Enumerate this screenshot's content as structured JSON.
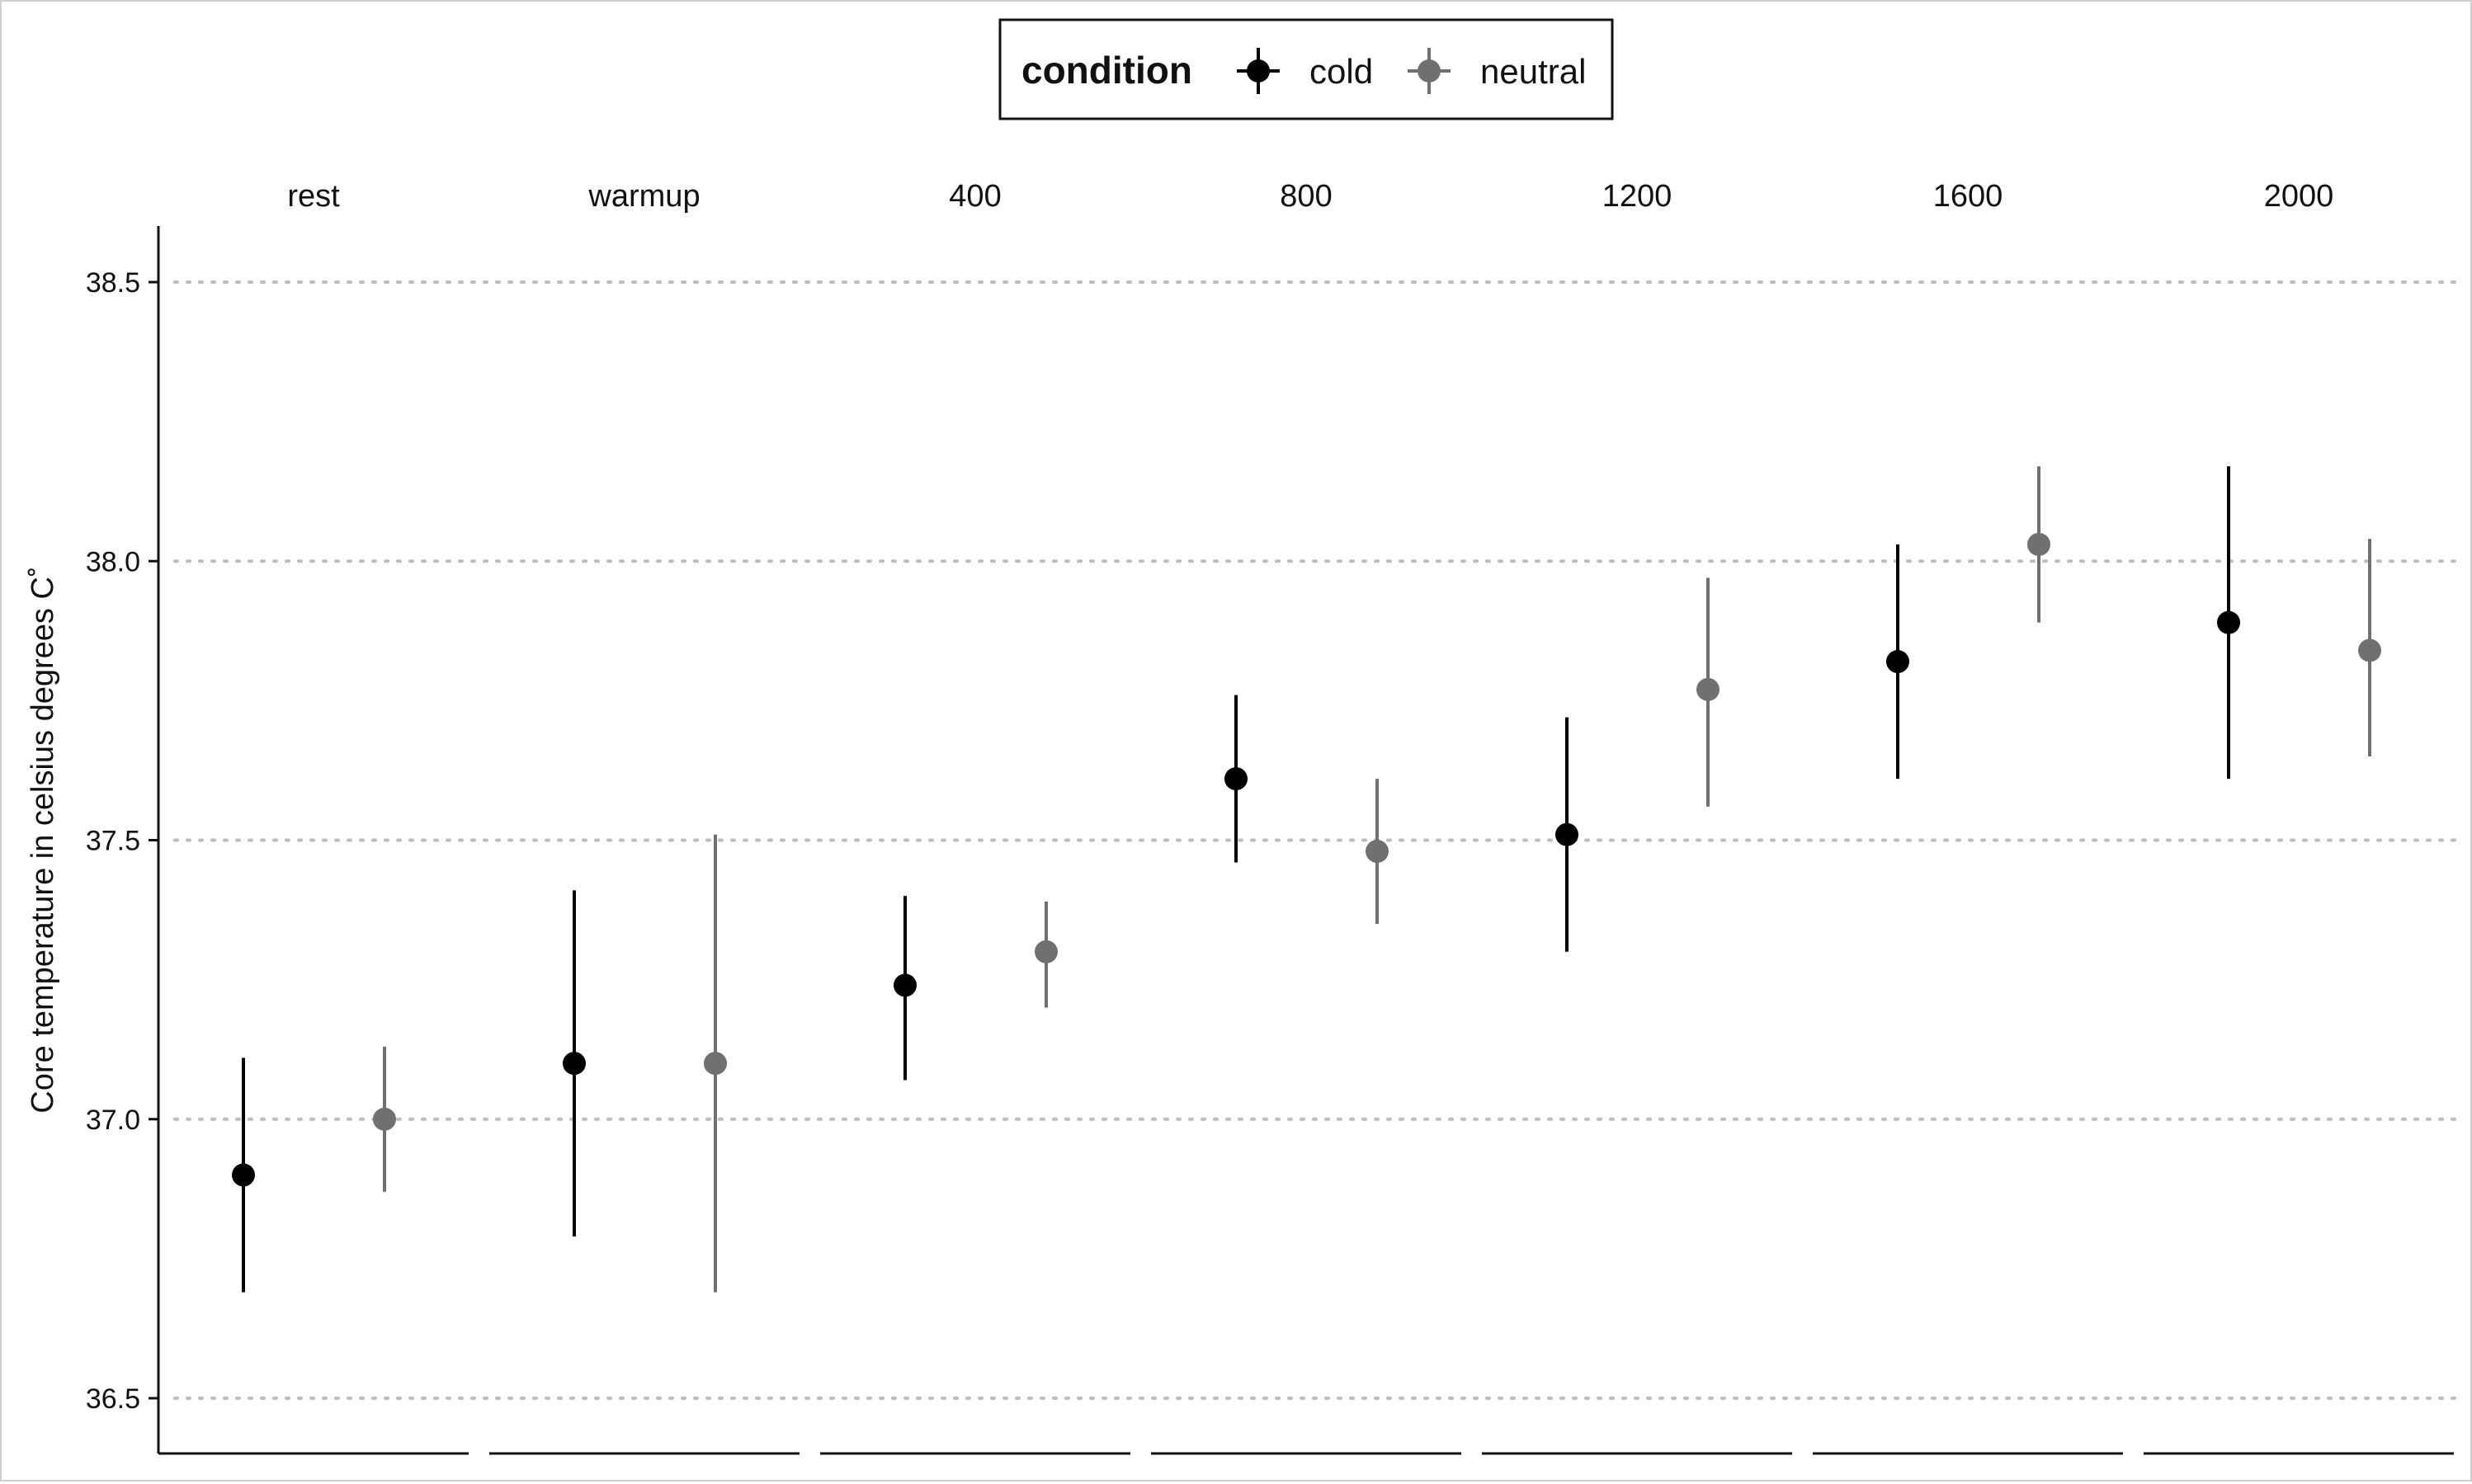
{
  "chart_data": {
    "type": "scatter",
    "subtype": "pointrange, faceted by stage",
    "ylabel": "Core temperature in celsius degrees C˚",
    "xlabel": "",
    "ylim": [
      36.4,
      38.6
    ],
    "yticks": [
      "36.5",
      "37.0",
      "37.5",
      "38.0",
      "38.5"
    ],
    "grid": "horizontal dotted",
    "legend": {
      "title": "condition",
      "position": "top",
      "entries": [
        "cold",
        "neutral"
      ]
    },
    "facets": [
      "rest",
      "warmup",
      "400",
      "800",
      "1200",
      "1600",
      "2000"
    ],
    "series": [
      {
        "name": "cold",
        "color": "#000000",
        "points": [
          {
            "facet": "rest",
            "y": 36.9,
            "low": 36.69,
            "high": 37.11
          },
          {
            "facet": "warmup",
            "y": 37.1,
            "low": 36.79,
            "high": 37.41
          },
          {
            "facet": "400",
            "y": 37.24,
            "low": 37.07,
            "high": 37.4
          },
          {
            "facet": "800",
            "y": 37.61,
            "low": 37.46,
            "high": 37.76
          },
          {
            "facet": "1200",
            "y": 37.51,
            "low": 37.3,
            "high": 37.72
          },
          {
            "facet": "1600",
            "y": 37.82,
            "low": 37.61,
            "high": 38.03
          },
          {
            "facet": "2000",
            "y": 37.89,
            "low": 37.61,
            "high": 38.17
          }
        ]
      },
      {
        "name": "neutral",
        "color": "#707070",
        "points": [
          {
            "facet": "rest",
            "y": 37.0,
            "low": 36.87,
            "high": 37.13
          },
          {
            "facet": "warmup",
            "y": 37.1,
            "low": 36.69,
            "high": 37.51
          },
          {
            "facet": "400",
            "y": 37.3,
            "low": 37.2,
            "high": 37.39
          },
          {
            "facet": "800",
            "y": 37.48,
            "low": 37.35,
            "high": 37.61
          },
          {
            "facet": "1200",
            "y": 37.77,
            "low": 37.56,
            "high": 37.97
          },
          {
            "facet": "1600",
            "y": 38.03,
            "low": 37.89,
            "high": 38.17
          },
          {
            "facet": "2000",
            "y": 37.84,
            "low": 37.65,
            "high": 38.04
          }
        ]
      }
    ]
  }
}
